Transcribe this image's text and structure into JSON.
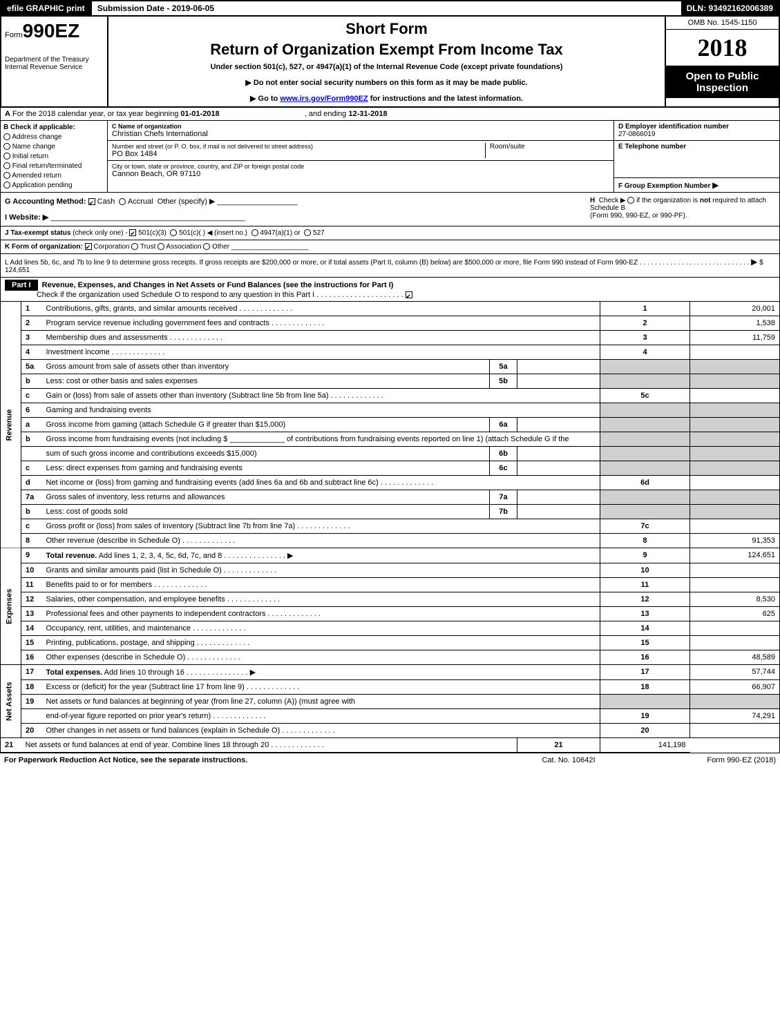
{
  "top_bar": {
    "efile": "efile GRAPHIC print",
    "submission": "Submission Date - 2019-06-05",
    "dln": "DLN: 93492162006389"
  },
  "header": {
    "form_prefix": "Form",
    "form_number": "990EZ",
    "dept1": "Department of the Treasury",
    "dept2": "Internal Revenue Service",
    "short_form": "Short Form",
    "main_title": "Return of Organization Exempt From Income Tax",
    "subtitle": "Under section 501(c), 527, or 4947(a)(1) of the Internal Revenue Code (except private foundations)",
    "instr1": "▶ Do not enter social security numbers on this form as it may be made public.",
    "instr2_pre": "▶ Go to ",
    "instr2_link": "www.irs.gov/Form990EZ",
    "instr2_post": " for instructions and the latest information.",
    "omb": "OMB No. 1545-1150",
    "year": "2018",
    "open_public_1": "Open to Public",
    "open_public_2": "Inspection"
  },
  "row_a": {
    "label_a": "A",
    "text1": "For the 2018 calendar year, or tax year beginning ",
    "begin_date": "01-01-2018",
    "text2": ", and ending ",
    "end_date": "12-31-2018"
  },
  "section_b": {
    "label": "B",
    "header": "Check if applicable:",
    "options": [
      "Address change",
      "Name change",
      "Initial return",
      "Final return/terminated",
      "Amended return",
      "Application pending"
    ]
  },
  "section_c": {
    "name_label": "C Name of organization",
    "org_name": "Christian Chefs International",
    "street_label": "Number and street (or P. O. box, if mail is not delivered to street address)",
    "street": "PO Box 1484",
    "room_label": "Room/suite",
    "room": "",
    "city_label": "City or town, state or province, country, and ZIP or foreign postal code",
    "city": "Cannon Beach, OR  97110"
  },
  "section_d": {
    "ein_label": "D Employer identification number",
    "ein": "27-0866019",
    "phone_label": "E Telephone number",
    "phone": "",
    "group_label": "F Group Exemption Number",
    "group_arrow": "▶"
  },
  "row_g": {
    "label": "G Accounting Method:",
    "cash": "Cash",
    "accrual": "Accrual",
    "other": "Other (specify) ▶"
  },
  "row_h": {
    "label": "H",
    "check": "Check ▶",
    "text1": "if the organization is ",
    "not": "not",
    "text2": " required to attach Schedule B",
    "text3": "(Form 990, 990-EZ, or 990-PF)."
  },
  "row_i": {
    "label": "I Website: ▶"
  },
  "row_j": {
    "label": "J Tax-exempt status",
    "note": "(check only one) -",
    "opt1": "501(c)(3)",
    "opt2": "501(c)(  ) ◀ (insert no.)",
    "opt3": "4947(a)(1) or",
    "opt4": "527"
  },
  "row_k": {
    "label": "K Form of organization:",
    "opts": [
      "Corporation",
      "Trust",
      "Association",
      "Other"
    ]
  },
  "row_l": {
    "text1": "L Add lines 5b, 6c, and 7b to line 9 to determine gross receipts. If gross receipts are $200,000 or more, or if total assets (Part II, column (B) below) are $500,000 or more, file Form 990 instead of Form 990-EZ",
    "arrow": "▶",
    "amount": "$ 124,651"
  },
  "part1": {
    "part_label": "Part I",
    "title": "Revenue, Expenses, and Changes in Net Assets or Fund Balances (see the instructions for Part I)",
    "check_text": "Check if the organization used Schedule O to respond to any question in this Part I"
  },
  "sections": {
    "revenue": "Revenue",
    "expenses": "Expenses",
    "net_assets": "Net Assets"
  },
  "lines": [
    {
      "n": "1",
      "desc": "Contributions, gifts, grants, and similar amounts received",
      "col": "1",
      "amt": "20,001"
    },
    {
      "n": "2",
      "desc": "Program service revenue including government fees and contracts",
      "col": "2",
      "amt": "1,538"
    },
    {
      "n": "3",
      "desc": "Membership dues and assessments",
      "col": "3",
      "amt": "11,759"
    },
    {
      "n": "4",
      "desc": "Investment income",
      "col": "4",
      "amt": ""
    },
    {
      "n": "5a",
      "desc": "Gross amount from sale of assets other than inventory",
      "sub": "5a",
      "sub_amt": ""
    },
    {
      "n": "b",
      "desc": "Less: cost or other basis and sales expenses",
      "sub": "5b",
      "sub_amt": ""
    },
    {
      "n": "c",
      "desc": "Gain or (loss) from sale of assets other than inventory (Subtract line 5b from line 5a)",
      "col": "5c",
      "amt": ""
    },
    {
      "n": "6",
      "desc": "Gaming and fundraising events",
      "grey_right": true
    },
    {
      "n": "a",
      "desc": "Gross income from gaming (attach Schedule G if greater than $15,000)",
      "sub": "6a",
      "sub_amt": "",
      "grey_right": true
    },
    {
      "n": "b",
      "desc": "Gross income from fundraising events (not including $ _____________ of contributions from fundraising events reported on line 1) (attach Schedule G if the",
      "grey_right": true
    },
    {
      "n": "",
      "desc": "sum of such gross income and contributions exceeds $15,000)",
      "sub": "6b",
      "sub_amt": "",
      "grey_right": true
    },
    {
      "n": "c",
      "desc": "Less: direct expenses from gaming and fundraising events",
      "sub": "6c",
      "sub_amt": "",
      "grey_right": true
    },
    {
      "n": "d",
      "desc": "Net income or (loss) from gaming and fundraising events (add lines 6a and 6b and subtract line 6c)",
      "col": "6d",
      "amt": ""
    },
    {
      "n": "7a",
      "desc": "Gross sales of inventory, less returns and allowances",
      "sub": "7a",
      "sub_amt": "",
      "grey_right": true
    },
    {
      "n": "b",
      "desc": "Less: cost of goods sold",
      "sub": "7b",
      "sub_amt": "",
      "grey_right": true
    },
    {
      "n": "c",
      "desc": "Gross profit or (loss) from sales of inventory (Subtract line 7b from line 7a)",
      "col": "7c",
      "amt": ""
    },
    {
      "n": "8",
      "desc": "Other revenue (describe in Schedule O)",
      "col": "8",
      "amt": "91,353"
    },
    {
      "n": "9",
      "desc": "Total revenue. Add lines 1, 2, 3, 4, 5c, 6d, 7c, and 8",
      "bold": true,
      "arrow": true,
      "col": "9",
      "amt": "124,651"
    },
    {
      "n": "10",
      "desc": "Grants and similar amounts paid (list in Schedule O)",
      "col": "10",
      "amt": ""
    },
    {
      "n": "11",
      "desc": "Benefits paid to or for members",
      "col": "11",
      "amt": ""
    },
    {
      "n": "12",
      "desc": "Salaries, other compensation, and employee benefits",
      "col": "12",
      "amt": "8,530"
    },
    {
      "n": "13",
      "desc": "Professional fees and other payments to independent contractors",
      "col": "13",
      "amt": "625"
    },
    {
      "n": "14",
      "desc": "Occupancy, rent, utilities, and maintenance",
      "col": "14",
      "amt": ""
    },
    {
      "n": "15",
      "desc": "Printing, publications, postage, and shipping",
      "col": "15",
      "amt": ""
    },
    {
      "n": "16",
      "desc": "Other expenses (describe in Schedule O)",
      "col": "16",
      "amt": "48,589"
    },
    {
      "n": "17",
      "desc": "Total expenses. Add lines 10 through 16",
      "bold": true,
      "arrow": true,
      "col": "17",
      "amt": "57,744"
    },
    {
      "n": "18",
      "desc": "Excess or (deficit) for the year (Subtract line 17 from line 9)",
      "col": "18",
      "amt": "66,907"
    },
    {
      "n": "19",
      "desc": "Net assets or fund balances at beginning of year (from line 27, column (A)) (must agree with",
      "grey_right": true
    },
    {
      "n": "",
      "desc": "end-of-year figure reported on prior year's return)",
      "col": "19",
      "amt": "74,291"
    },
    {
      "n": "20",
      "desc": "Other changes in net assets or fund balances (explain in Schedule O)",
      "col": "20",
      "amt": ""
    },
    {
      "n": "21",
      "desc": "Net assets or fund balances at end of year. Combine lines 18 through 20",
      "col": "21",
      "amt": "141,198"
    }
  ],
  "footer": {
    "left": "For Paperwork Reduction Act Notice, see the separate instructions.",
    "center": "Cat. No. 10642I",
    "right": "Form 990-EZ (2018)"
  },
  "section_breaks": {
    "revenue_end": 9,
    "expenses_end": 17
  }
}
